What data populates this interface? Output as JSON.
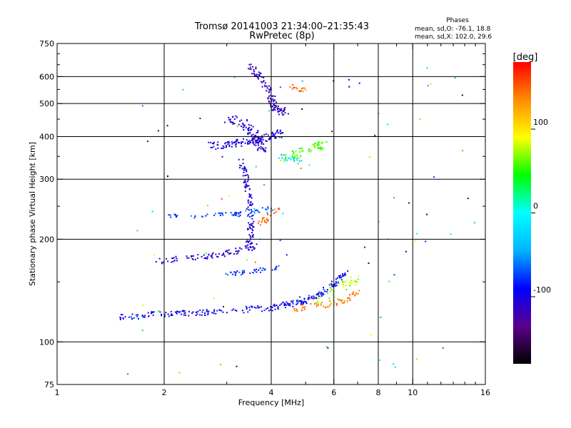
{
  "chart_data": {
    "type": "scatter",
    "title": "Tromsø 20141003 21:34:00–21:35:43",
    "subtitle": "RwPretec (8p)",
    "xlabel": "Frequency [MHz]",
    "ylabel": "Stationary phase Virtual Height [km]",
    "x_scale": "log",
    "y_scale": "log",
    "xlim": [
      1,
      16
    ],
    "ylim": [
      75,
      750
    ],
    "x_ticks": [
      1,
      2,
      4,
      6,
      8,
      10,
      16
    ],
    "x_tick_labels": [
      "1",
      "2",
      "4",
      "6",
      "8",
      "10",
      "16"
    ],
    "x_minor_ticks": [
      3,
      5,
      7,
      9,
      11,
      12,
      13,
      14,
      15
    ],
    "y_ticks": [
      75,
      100,
      200,
      300,
      400,
      500,
      600,
      750
    ],
    "y_tick_labels": [
      "75",
      "100",
      "200",
      "300",
      "400",
      "500",
      "600",
      "750"
    ],
    "grid": true,
    "stats": {
      "heading": "Phases",
      "line_o": "mean, sd,O: -76.1, 18.8",
      "line_x": "mean, sd,X: 102.0, 29.6"
    },
    "colorbar": {
      "label": "[deg]",
      "ticks": [
        100,
        0,
        -100
      ],
      "tick_labels": [
        "100",
        "0",
        "-100"
      ],
      "range": [
        -180,
        180
      ],
      "scale": [
        "#000000",
        "#5a008c",
        "#0000ff",
        "#00b4ff",
        "#00ffff",
        "#00ff00",
        "#ffff00",
        "#ff8c00",
        "#ff0000"
      ]
    },
    "traces": [
      {
        "points": [
          [
            1.5,
            118
          ],
          [
            1.8,
            120
          ],
          [
            2.2,
            121
          ],
          [
            2.7,
            122
          ],
          [
            3.3,
            124
          ],
          [
            4.0,
            126
          ],
          [
            4.5,
            129
          ],
          [
            5.0,
            132
          ],
          [
            5.5,
            138
          ],
          [
            6.0,
            148
          ],
          [
            6.5,
            160
          ]
        ],
        "phase": -95,
        "jitter": 0.02,
        "density": 260
      },
      {
        "points": [
          [
            4.5,
            125
          ],
          [
            5.2,
            127
          ],
          [
            6.0,
            130
          ],
          [
            6.6,
            133
          ],
          [
            7.0,
            140
          ]
        ],
        "phase": 140,
        "jitter": 0.02,
        "density": 60
      },
      {
        "points": [
          [
            5.2,
            130
          ],
          [
            5.8,
            138
          ],
          [
            6.4,
            146
          ],
          [
            7.0,
            152
          ]
        ],
        "phase": 75,
        "jitter": 0.03,
        "density": 40
      },
      {
        "points": [
          [
            1.85,
            172
          ],
          [
            2.2,
            175
          ],
          [
            2.6,
            178
          ],
          [
            3.0,
            182
          ],
          [
            3.4,
            187
          ],
          [
            3.6,
            192
          ]
        ],
        "phase": -110,
        "jitter": 0.02,
        "density": 90
      },
      {
        "points": [
          [
            3.0,
            158
          ],
          [
            3.4,
            160
          ],
          [
            3.8,
            163
          ],
          [
            4.2,
            166
          ]
        ],
        "phase": -80,
        "jitter": 0.015,
        "density": 40
      },
      {
        "points": [
          [
            3.3,
            340
          ],
          [
            3.4,
            300
          ],
          [
            3.45,
            270
          ],
          [
            3.5,
            240
          ],
          [
            3.5,
            210
          ],
          [
            3.45,
            190
          ]
        ],
        "phase": -105,
        "jitter": 0.02,
        "density": 110
      },
      {
        "points": [
          [
            2.0,
            233
          ],
          [
            2.4,
            234
          ],
          [
            2.8,
            235
          ],
          [
            3.1,
            236
          ],
          [
            3.3,
            237
          ]
        ],
        "phase": -75,
        "jitter": 0.015,
        "density": 45
      },
      {
        "points": [
          [
            3.4,
            240
          ],
          [
            3.7,
            242
          ],
          [
            4.0,
            245
          ]
        ],
        "phase": -60,
        "jitter": 0.02,
        "density": 20
      },
      {
        "points": [
          [
            2.7,
            375
          ],
          [
            3.0,
            380
          ],
          [
            3.3,
            385
          ],
          [
            3.6,
            390
          ],
          [
            3.8,
            395
          ],
          [
            4.0,
            400
          ],
          [
            4.3,
            410
          ]
        ],
        "phase": -100,
        "jitter": 0.025,
        "density": 130
      },
      {
        "points": [
          [
            3.0,
            450
          ],
          [
            3.3,
            440
          ],
          [
            3.5,
            420
          ],
          [
            3.6,
            400
          ],
          [
            3.7,
            380
          ],
          [
            3.8,
            360
          ]
        ],
        "phase": -110,
        "jitter": 0.03,
        "density": 90
      },
      {
        "points": [
          [
            3.5,
            640
          ],
          [
            3.7,
            610
          ],
          [
            3.9,
            560
          ],
          [
            4.0,
            520
          ],
          [
            4.05,
            490
          ],
          [
            4.2,
            480
          ],
          [
            4.4,
            470
          ]
        ],
        "phase": -115,
        "jitter": 0.025,
        "density": 110
      },
      {
        "points": [
          [
            4.3,
            345
          ],
          [
            4.7,
            355
          ],
          [
            5.0,
            365
          ],
          [
            5.4,
            375
          ],
          [
            5.6,
            380
          ]
        ],
        "phase": 60,
        "jitter": 0.025,
        "density": 60
      },
      {
        "points": [
          [
            4.2,
            350
          ],
          [
            4.5,
            345
          ],
          [
            4.8,
            342
          ]
        ],
        "phase": -20,
        "jitter": 0.02,
        "density": 20
      },
      {
        "points": [
          [
            4.6,
            560
          ],
          [
            4.8,
            550
          ],
          [
            5.0,
            545
          ]
        ],
        "phase": 150,
        "jitter": 0.02,
        "density": 15
      },
      {
        "points": [
          [
            3.7,
            222
          ],
          [
            3.85,
            228
          ],
          [
            4.0,
            240
          ],
          [
            4.2,
            250
          ]
        ],
        "phase": 145,
        "jitter": 0.02,
        "density": 25
      }
    ],
    "scatter_noise": {
      "phase": "mixed",
      "count": 90
    }
  }
}
